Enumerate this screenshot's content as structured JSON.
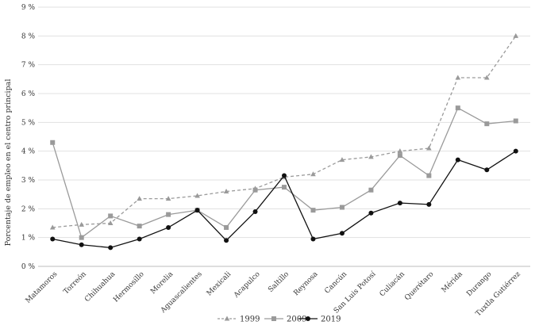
{
  "chart_data": {
    "type": "line",
    "title": "",
    "xlabel": "",
    "ylabel": "Porcentaje de empleo en el centro principal",
    "ylim": [
      0,
      9
    ],
    "yticks": [
      "0 %",
      "1 %",
      "2 %",
      "3 %",
      "4 %",
      "5 %",
      "6 %",
      "7 %",
      "8 %",
      "9 %"
    ],
    "grid": "horizontal",
    "legend_position": "bottom-center",
    "categories": [
      "Matamoros",
      "Torreón",
      "Chihuahua",
      "Hermosillo",
      "Morelia",
      "Aguascalientes",
      "Mexicali",
      "Acapulco",
      "Saltillo",
      "Reynosa",
      "Cancún",
      "San Luis Potosí",
      "Culiacán",
      "Querétaro",
      "Mérida",
      "Durango",
      "Tuxtla Gutiérrez"
    ],
    "series": [
      {
        "name": "1999",
        "color": "#9a9a9a",
        "dash": "dashed",
        "marker": "triangle",
        "values": [
          1.35,
          1.45,
          1.5,
          2.35,
          2.35,
          2.45,
          2.6,
          2.7,
          3.1,
          3.2,
          3.7,
          3.8,
          4.0,
          4.1,
          6.55,
          6.55,
          8.0
        ]
      },
      {
        "name": "2009",
        "color": "#9a9a9a",
        "dash": "solid",
        "marker": "square",
        "values": [
          4.3,
          1.0,
          1.75,
          1.4,
          1.8,
          1.95,
          1.35,
          2.65,
          2.75,
          1.95,
          2.05,
          2.65,
          3.85,
          3.15,
          5.5,
          4.95,
          5.05
        ]
      },
      {
        "name": "2019",
        "color": "#111111",
        "dash": "solid",
        "marker": "circle",
        "values": [
          0.95,
          0.75,
          0.65,
          0.95,
          1.35,
          1.95,
          0.9,
          1.9,
          3.15,
          0.95,
          1.15,
          1.85,
          2.2,
          2.15,
          3.7,
          3.35,
          4.0
        ]
      }
    ]
  }
}
